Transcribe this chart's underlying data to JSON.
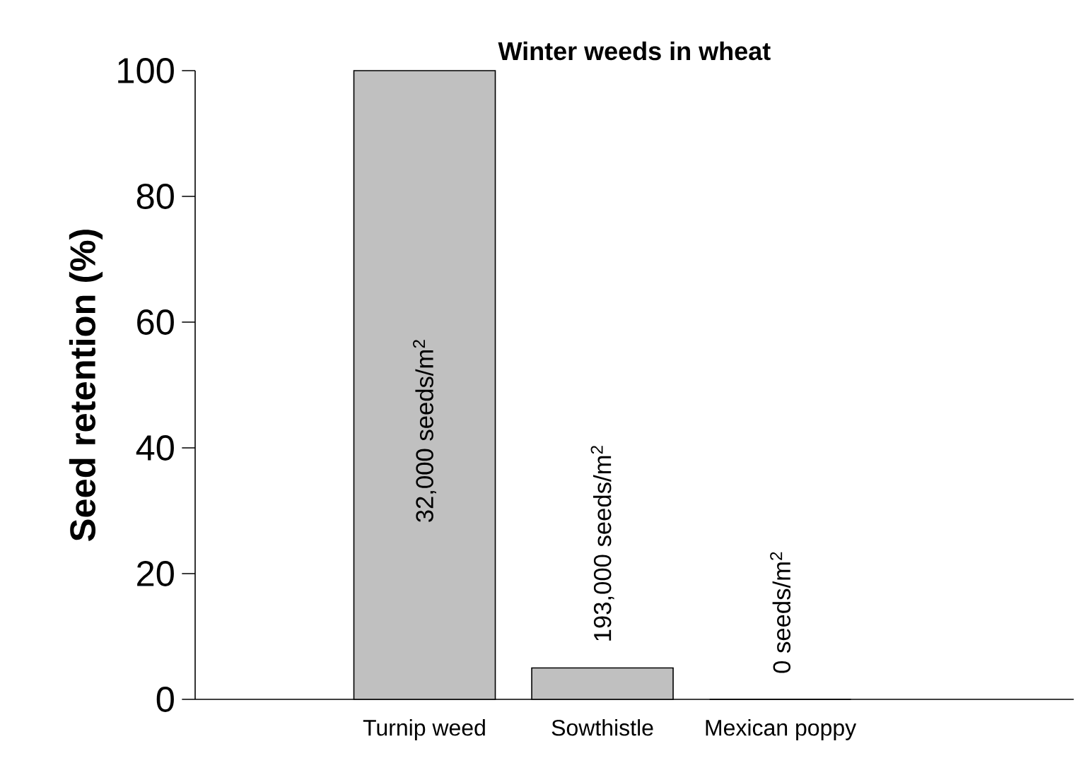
{
  "chart_data": {
    "type": "bar",
    "title": "Winter weeds in wheat",
    "ylabel": "Seed retention (%)",
    "categories": [
      "Turnip weed",
      "Sowthistle",
      "Mexican poppy"
    ],
    "values": [
      100,
      5,
      0
    ],
    "color": "#c0c0c0",
    "ylim": [
      0,
      100
    ],
    "yticks": [
      0,
      20,
      40,
      60,
      80,
      100
    ],
    "grid": false,
    "annotations": [
      "32,000 seeds/m$^{2}$",
      "193,000 seeds/m$^{2}$",
      "0 seeds/m$^{2}$"
    ]
  }
}
